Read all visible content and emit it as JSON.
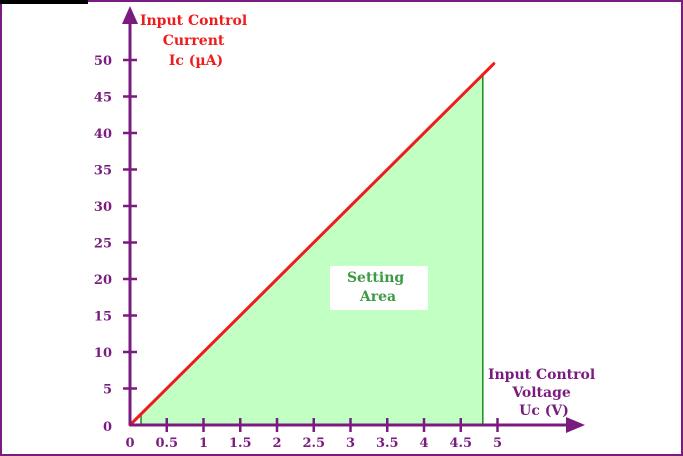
{
  "chart_data": {
    "type": "line",
    "x_ticks": [
      "0",
      "0.5",
      "1",
      "1.5",
      "2",
      "2.5",
      "3",
      "3.5",
      "4",
      "4.5",
      "5"
    ],
    "y_ticks": [
      "0",
      "5",
      "10",
      "15",
      "20",
      "25",
      "30",
      "35",
      "40",
      "45",
      "50"
    ],
    "xlim": [
      0,
      5
    ],
    "ylim": [
      0,
      50
    ],
    "ylabel_lines": [
      "Input Control",
      "Current",
      "Ic (µA)"
    ],
    "xlabel_lines": [
      "Input Control",
      "Voltage",
      "Uc (V)"
    ],
    "series": [
      {
        "x": [
          0,
          4.95
        ],
        "y": [
          0,
          49.5
        ]
      }
    ],
    "setting_area": {
      "x_start": 0.15,
      "x_end": 4.8,
      "label_lines": [
        "Setting",
        "Area"
      ]
    },
    "grid": false
  },
  "colors": {
    "axis": "#7a1b7f",
    "line": "#ee1c1c",
    "area_fill": "#c2ffc2",
    "area_edge": "#1a8a1a",
    "area_text": "#3d9a45",
    "title_y": "#ee1c1c",
    "title_x": "#7a1b7f"
  }
}
